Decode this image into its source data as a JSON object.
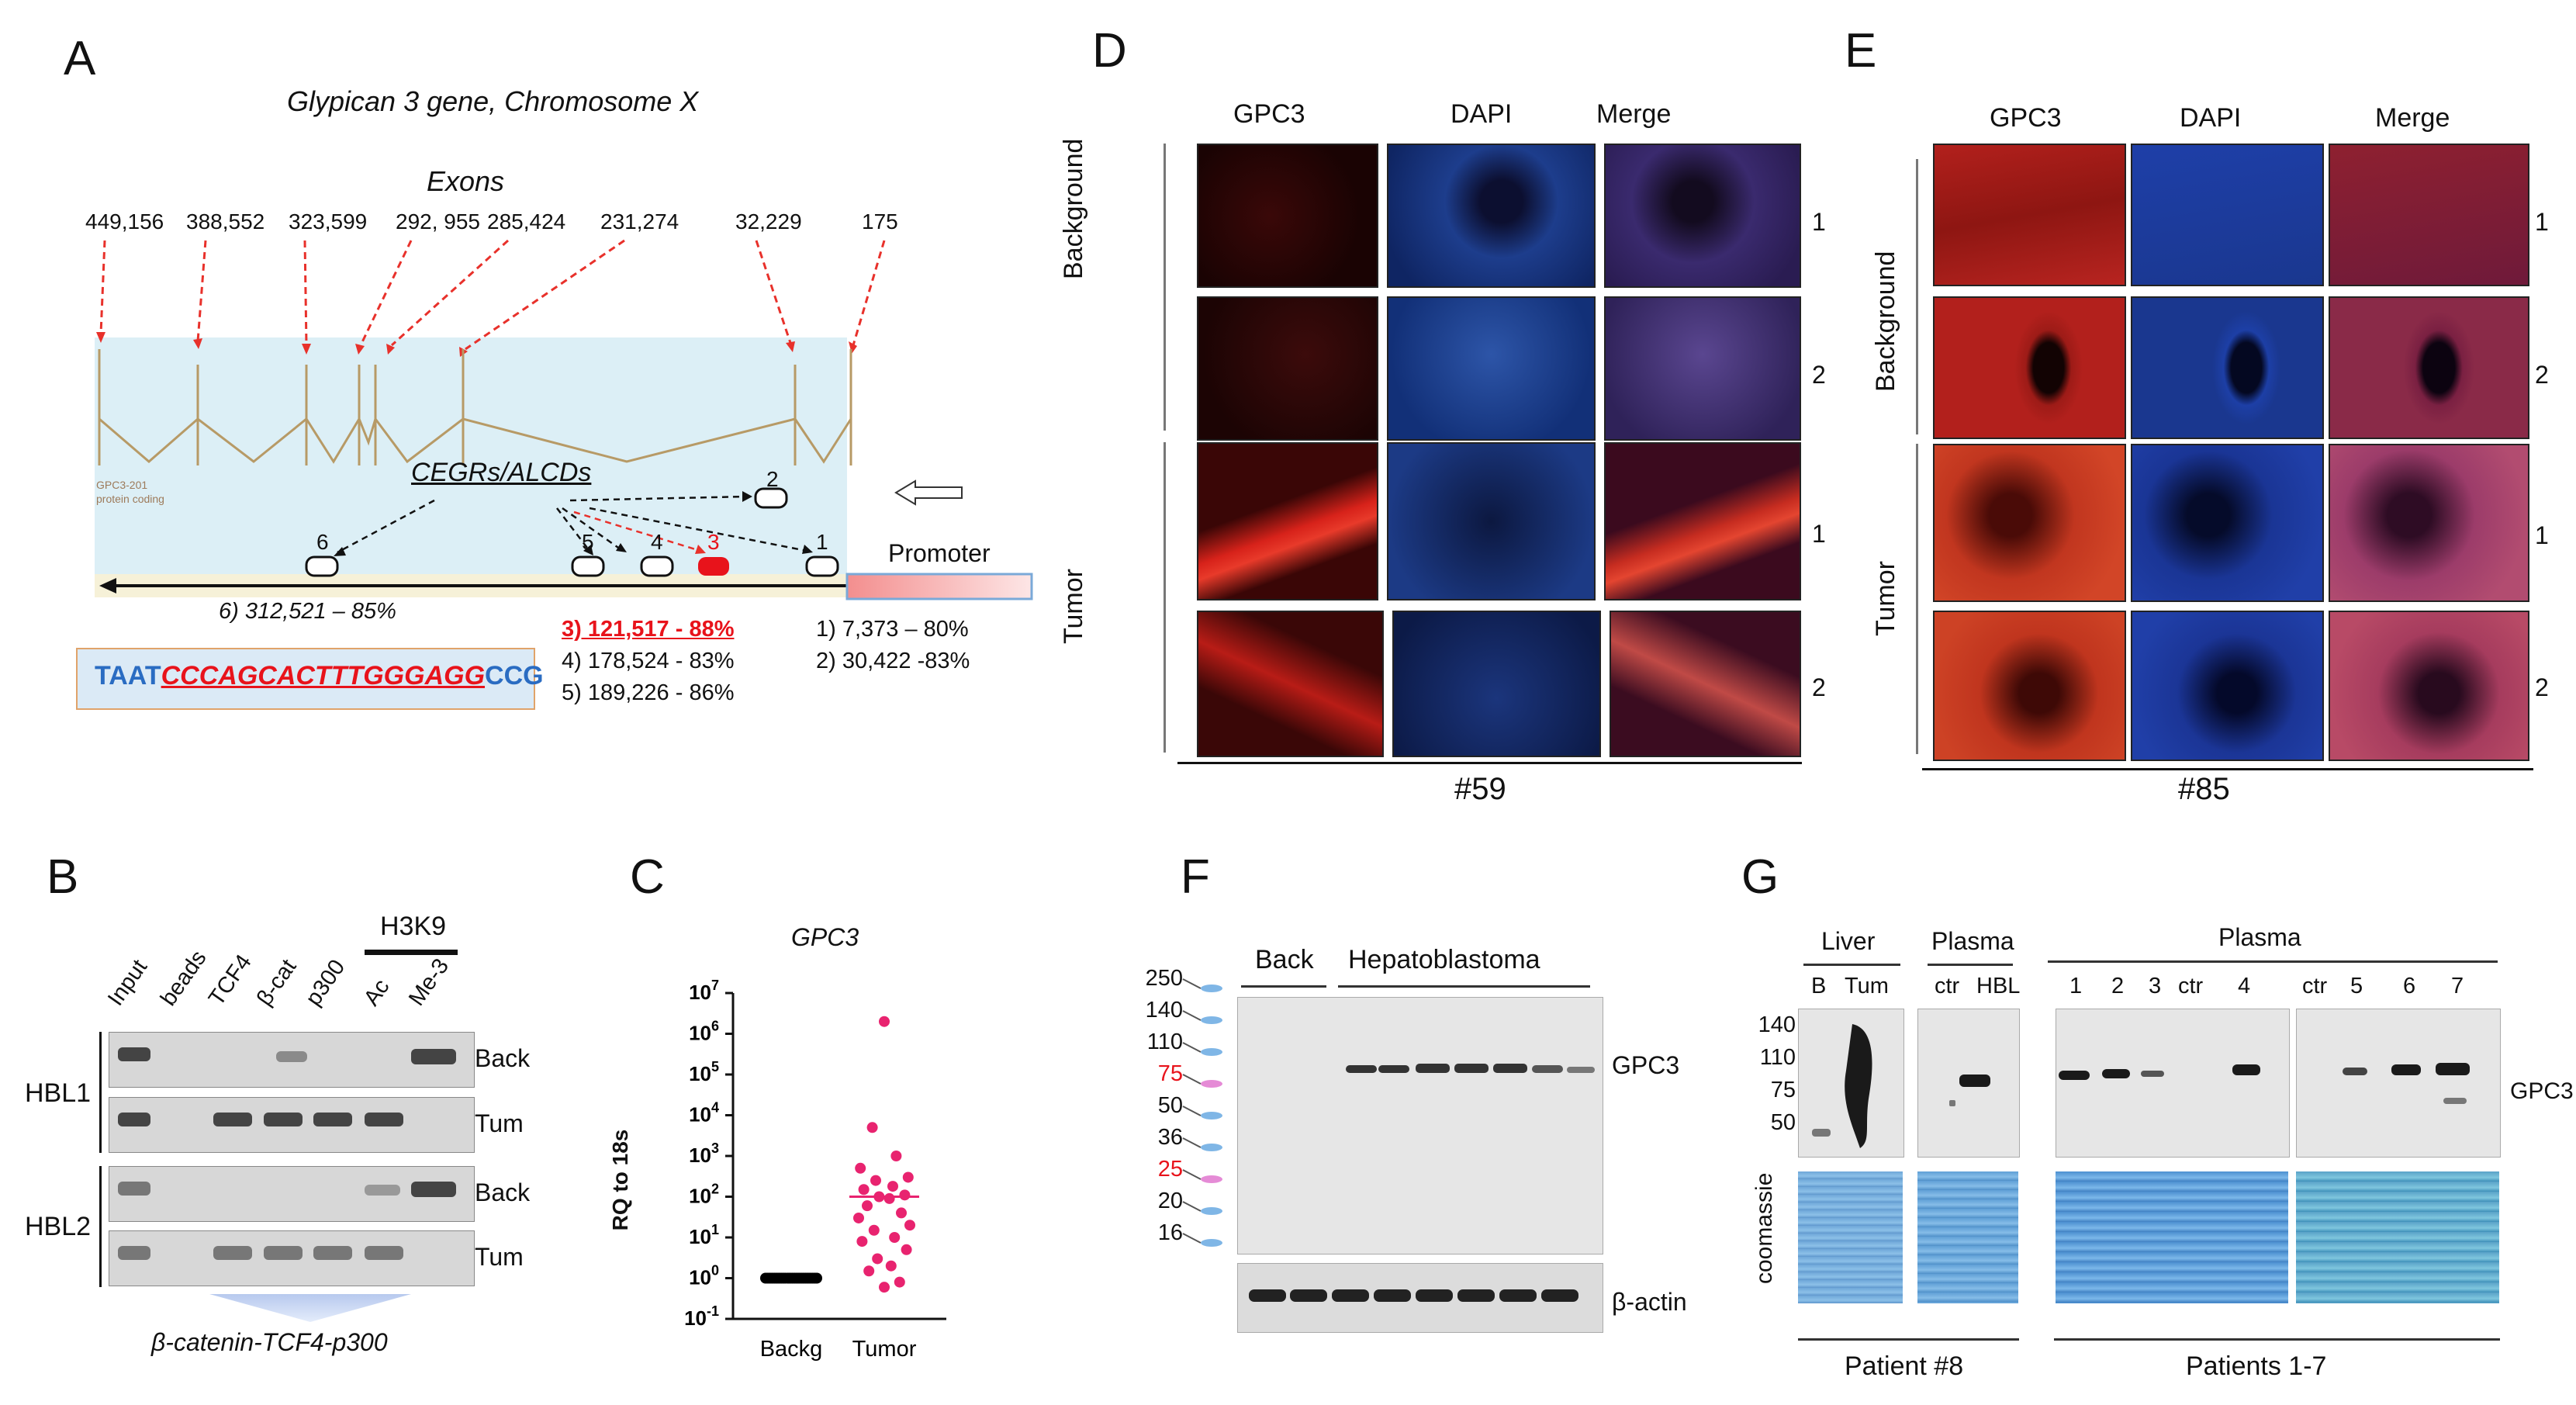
{
  "panels": {
    "A": "A",
    "B": "B",
    "C": "C",
    "D": "D",
    "E": "E",
    "F": "F",
    "G": "G"
  },
  "A": {
    "title": "Glypican 3 gene, Chromosome X",
    "exons_label": "Exons",
    "exon_positions": [
      "449,156",
      "388,552",
      "323,599",
      "292, 955",
      "285,424",
      "231,274",
      "32,229",
      "175"
    ],
    "cegr_label": "CEGRs/ALCDs",
    "sites": [
      "6",
      "5",
      "4",
      "3",
      "2",
      "1"
    ],
    "promoter": "Promoter",
    "site6_text": "6) 312,521 – 85%",
    "site3_text": "3) 121,517 -  88%",
    "site4_text": "4) 178,524 - 83%",
    "site5_text": "5) 189,226 - 86%",
    "site1_text": "1) 7,373 – 80%",
    "site2_text": "2) 30,422 -83%",
    "seq_prefix": "TAAT",
    "seq_core": "CCCAGCACTTTGGGAGG",
    "seq_suffix": "CCG",
    "colors": {
      "arrow_red": "#e8312b",
      "intron": "#b79a66",
      "seq_blue": "#2a6cc2",
      "promoter": "#f39a9a"
    }
  },
  "B": {
    "h3k9": "H3K9",
    "columns": [
      "Input",
      "beads",
      "TCF4",
      "β-cat",
      "p300",
      "Ac",
      "Me-3"
    ],
    "rows": [
      {
        "group": "HBL1",
        "label": "Back"
      },
      {
        "group": "",
        "label": "Tum"
      },
      {
        "group": "HBL2",
        "label": "Back"
      },
      {
        "group": "",
        "label": "Tum"
      }
    ],
    "groups": [
      "HBL1",
      "HBL2"
    ],
    "caption": "β-catenin-TCF4-p300"
  },
  "C": {
    "chart_data": {
      "type": "scatter",
      "title": "GPC3",
      "ylabel": "RQ to 18s",
      "yscale": "log",
      "ylim": [
        0.1,
        10000000
      ],
      "yticks": [
        "10^-1",
        "10^0",
        "10^1",
        "10^2",
        "10^3",
        "10^4",
        "10^5",
        "10^6",
        "10^7"
      ],
      "categories": [
        "Backg",
        "Tumor"
      ],
      "series": [
        {
          "category": "Backg",
          "values": [
            1,
            1,
            1,
            1,
            1,
            1,
            1,
            1,
            1,
            1,
            1,
            1,
            1,
            1,
            1,
            1,
            1,
            1,
            1,
            1,
            1,
            1,
            1,
            1
          ],
          "color": "#000000"
        },
        {
          "category": "Tumor",
          "values": [
            2000000,
            5000,
            1000,
            500,
            300,
            250,
            180,
            150,
            110,
            100,
            90,
            60,
            40,
            30,
            20,
            15,
            10,
            8,
            5,
            3,
            2,
            1.5,
            0.8,
            0.6
          ],
          "color": "#e8236f",
          "median": 100
        }
      ]
    }
  },
  "D": {
    "columns": [
      "GPC3",
      "DAPI",
      "Merge"
    ],
    "groups": [
      "Background",
      "Tumor"
    ],
    "row_numbers": [
      "1",
      "2",
      "1",
      "2"
    ],
    "sample": "#59"
  },
  "E": {
    "columns": [
      "GPC3",
      "DAPI",
      "Merge"
    ],
    "groups": [
      "Background",
      "Tumor"
    ],
    "row_numbers": [
      "1",
      "2",
      "1",
      "2"
    ],
    "sample": "#85"
  },
  "F": {
    "ladder": [
      "250",
      "140",
      "110",
      "75",
      "50",
      "36",
      "25",
      "20",
      "16"
    ],
    "ladder_red": [
      "75",
      "25"
    ],
    "back": "Back",
    "hb": "Hepatoblastoma",
    "gpc3": "GPC3",
    "actin": "β-actin"
  },
  "G": {
    "liver": "Liver",
    "plasma1": "Plasma",
    "plasma2": "Plasma",
    "liver_lanes": [
      "B",
      "Tum"
    ],
    "plasma1_lanes": [
      "ctr",
      "HBL"
    ],
    "plasma2_lanes": [
      "1",
      "2",
      "3",
      "ctr",
      "4"
    ],
    "plasma3_lanes": [
      "ctr",
      "5",
      "6",
      "7"
    ],
    "mw": [
      "140",
      "110",
      "75",
      "50"
    ],
    "gpc3": "GPC3",
    "coomassie": "coomassie",
    "patient8": "Patient #8",
    "patients": "Patients 1-7"
  }
}
